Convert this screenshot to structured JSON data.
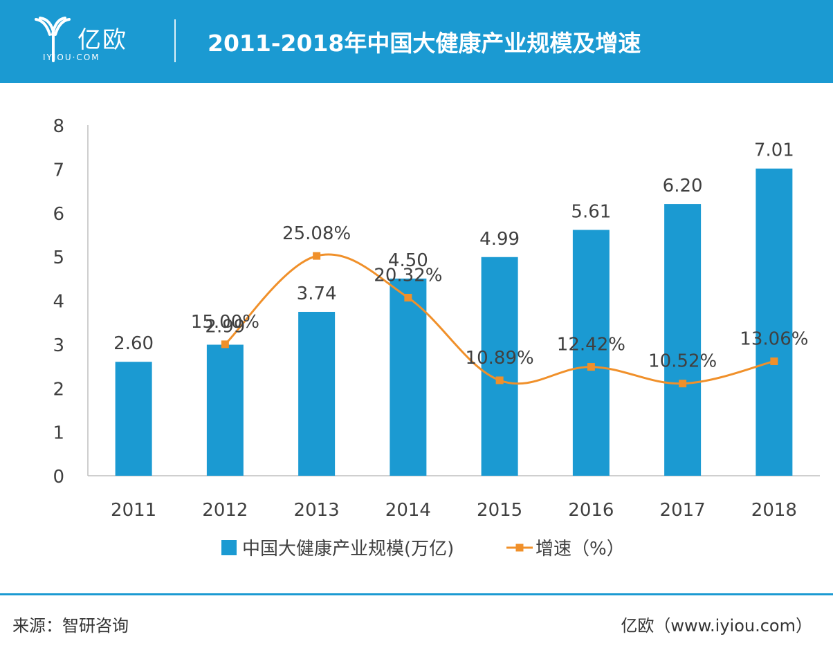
{
  "header": {
    "logo_text": "亿欧",
    "logo_sub": "IYIOU·COM",
    "title": "2011-2018年中国大健康产业规模及增速"
  },
  "colors": {
    "header_bg": "#1b9ad2",
    "bar": "#1b9ad2",
    "line": "#f0902a"
  },
  "chart_data": {
    "type": "bar",
    "categories": [
      "2011",
      "2012",
      "2013",
      "2014",
      "2015",
      "2016",
      "2017",
      "2018"
    ],
    "series": [
      {
        "name": "中国大健康产业规模(万亿)",
        "type": "bar",
        "values": [
          2.6,
          2.99,
          3.74,
          4.5,
          4.99,
          5.61,
          6.2,
          7.01
        ],
        "labels": [
          "2.60",
          "2.99",
          "3.74",
          "4.50",
          "4.99",
          "5.61",
          "6.20",
          "7.01"
        ]
      },
      {
        "name": "增速（%）",
        "type": "line",
        "values": [
          null,
          15.0,
          25.08,
          20.32,
          10.89,
          12.42,
          10.52,
          13.06
        ],
        "labels": [
          "",
          "15.00%",
          "25.08%",
          "20.32%",
          "10.89%",
          "12.42%",
          "10.52%",
          "13.06%"
        ]
      }
    ],
    "y_ticks": [
      "0",
      "1",
      "2",
      "3",
      "4",
      "5",
      "6",
      "7",
      "8"
    ],
    "ylim": [
      0,
      8
    ],
    "legend_position": "bottom"
  },
  "footer": {
    "source": "来源：智研咨询",
    "credit": "亿欧（www.iyiou.com）"
  }
}
